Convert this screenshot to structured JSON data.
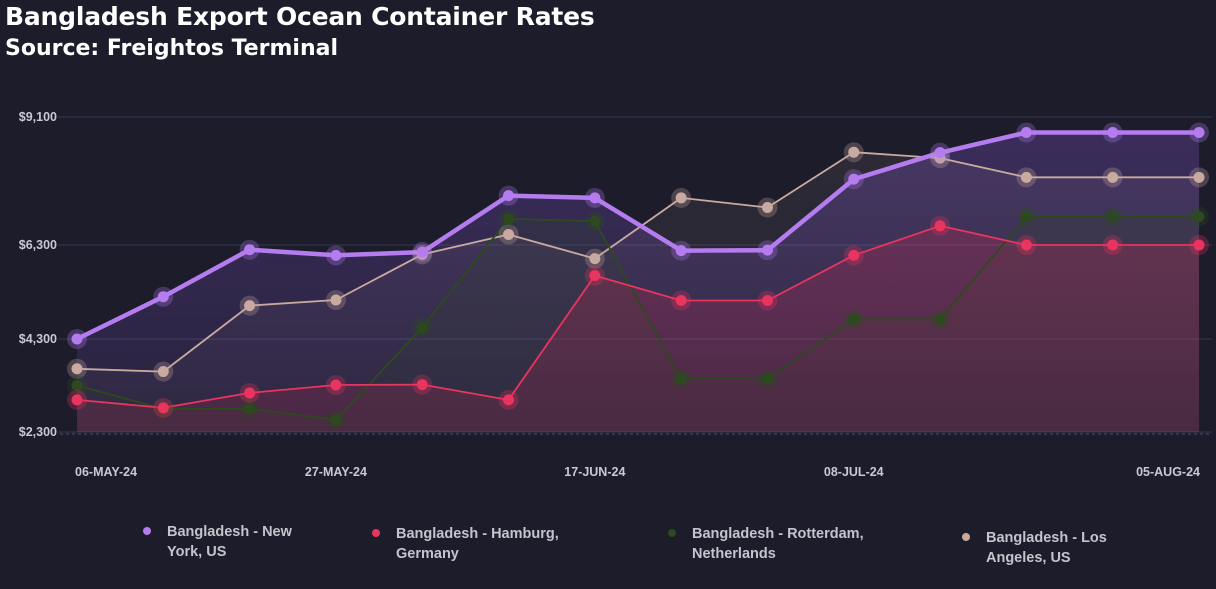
{
  "header": {
    "title": "Bangladesh Export Ocean Container Rates",
    "subtitle": "Source: Freightos Terminal"
  },
  "chart_data": {
    "type": "line",
    "title": "Bangladesh Export Ocean Container Rates",
    "subtitle": "Source: Freightos Terminal",
    "xlabel": "",
    "ylabel": "",
    "ylim": [
      2300,
      9100
    ],
    "yticks": [
      2300,
      4300,
      6300,
      9100
    ],
    "ytick_labels": [
      "$2,300",
      "$4,300",
      "$6,300",
      "$9,100"
    ],
    "x": [
      "06-MAY-24",
      "13-MAY-24",
      "20-MAY-24",
      "27-MAY-24",
      "03-JUN-24",
      "10-JUN-24",
      "17-JUN-24",
      "24-JUN-24",
      "01-JUL-24",
      "08-JUL-24",
      "15-JUL-24",
      "22-JUL-24",
      "29-JUL-24",
      "05-AUG-24"
    ],
    "xtick_labels": [
      {
        "index": 0,
        "label": "06-MAY-24"
      },
      {
        "index": 3,
        "label": "27-MAY-24"
      },
      {
        "index": 6,
        "label": "17-JUN-24"
      },
      {
        "index": 9,
        "label": "08-JUL-24"
      },
      {
        "index": 13,
        "label": "05-AUG-24"
      }
    ],
    "grid": true,
    "legend_position": "bottom",
    "series": [
      {
        "name": "Bangladesh - New York, US",
        "legend_lines": [
          "Bangladesh - New",
          "York, US"
        ],
        "color": "#b57cf0",
        "values": [
          4300,
          5200,
          6200,
          6080,
          6150,
          7380,
          7330,
          6180,
          6190,
          7740,
          8320,
          8760,
          8760,
          8760
        ]
      },
      {
        "name": "Bangladesh - Hamburg, Germany",
        "legend_lines": [
          "Bangladesh - Hamburg,",
          "Germany"
        ],
        "color": "#e8345f",
        "values": [
          2990,
          2820,
          3140,
          3310,
          3320,
          2990,
          5650,
          5120,
          5120,
          6080,
          6720,
          6300,
          6300,
          6300
        ]
      },
      {
        "name": "Bangladesh - Rotterdam, Netherlands",
        "legend_lines": [
          "Bangladesh - Rotterdam,",
          "Netherlands"
        ],
        "color": "#2c4a1e",
        "values": [
          3300,
          2800,
          2800,
          2560,
          4540,
          6870,
          6820,
          3440,
          3440,
          4720,
          4720,
          6920,
          6920,
          6920
        ]
      },
      {
        "name": "Bangladesh - Los Angeles, US",
        "legend_lines": [
          "Bangladesh - Los",
          "Angeles, US"
        ],
        "color": "#c9aaa0",
        "values": [
          3660,
          3600,
          5010,
          5130,
          6100,
          6530,
          6010,
          7330,
          7120,
          8330,
          8200,
          7780,
          7780,
          7780
        ]
      }
    ]
  }
}
